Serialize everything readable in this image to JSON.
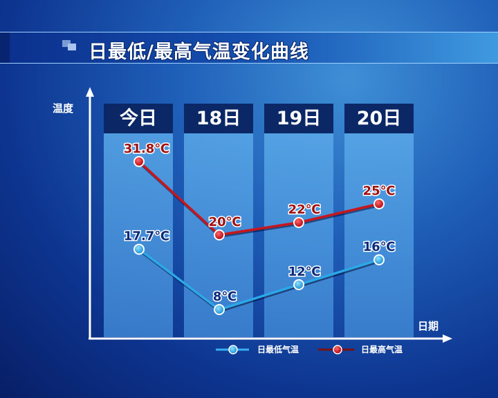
{
  "title": "日最低/最高气温变化曲线",
  "chart_data": {
    "type": "line",
    "title": "日最低/最高气温变化曲线",
    "xlabel": "日期",
    "ylabel": "温度",
    "categories": [
      "今日",
      "18日",
      "19日",
      "20日"
    ],
    "series": [
      {
        "name": "日最高气温",
        "values": [
          31.8,
          20,
          22,
          25
        ],
        "labels": [
          "31.8℃",
          "20℃",
          "22℃",
          "25℃"
        ],
        "color": "#c8161d",
        "label_color": "#a01010"
      },
      {
        "name": "日最低气温",
        "values": [
          17.7,
          8,
          12,
          16
        ],
        "labels": [
          "17.7℃",
          "8℃",
          "12℃",
          "16℃"
        ],
        "color": "#2aa8e8",
        "label_color": "#0b2a7a"
      }
    ],
    "legend": "bottom",
    "grid": false
  }
}
